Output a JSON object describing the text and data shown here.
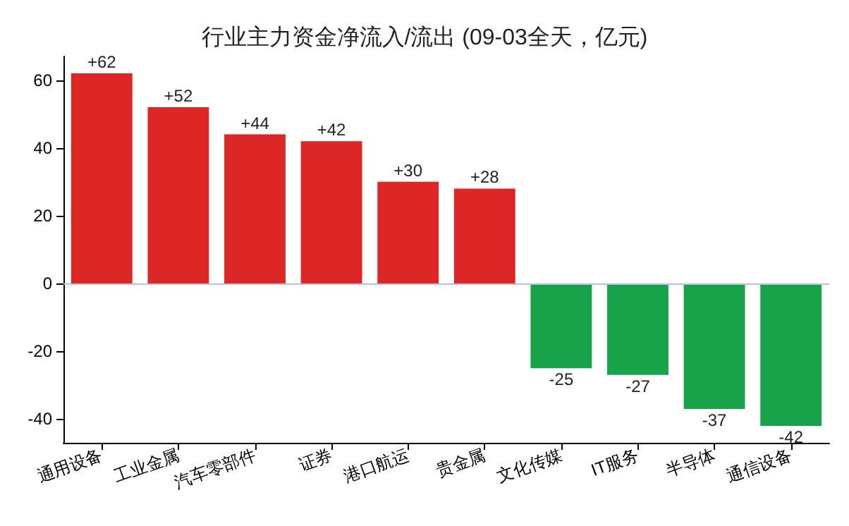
{
  "chart_data": {
    "type": "bar",
    "title": "行业主力资金净流入/流出 (09-03全天，亿元)",
    "categories": [
      "通用设备",
      "工业金属",
      "汽车零部件",
      "证券",
      "港口航运",
      "贵金属",
      "文化传媒",
      "IT服务",
      "半导体",
      "通信设备"
    ],
    "values": [
      62,
      52,
      44,
      42,
      30,
      28,
      -25,
      -27,
      -37,
      -42
    ],
    "colors": [
      "#dd2727",
      "#dd2727",
      "#dd2727",
      "#dd2727",
      "#dd2727",
      "#dd2727",
      "#18a34a",
      "#18a34a",
      "#18a34a",
      "#18a34a"
    ],
    "value_labels": [
      "+62",
      "+52",
      "+44",
      "+42",
      "+30",
      "+28",
      "-25",
      "-27",
      "-37",
      "-42"
    ],
    "ylim": [
      -47,
      67
    ],
    "yticks": [
      -40,
      -20,
      0,
      20,
      40,
      60
    ],
    "ref_lines": [
      {
        "axis": "y",
        "value": 0,
        "label": null,
        "color": "#b0c4de"
      }
    ],
    "grid": false
  }
}
